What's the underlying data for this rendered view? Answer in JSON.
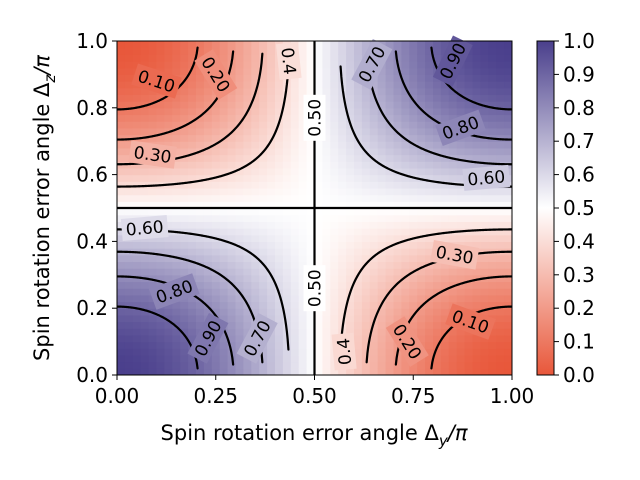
{
  "chart_data": {
    "type": "heatmap",
    "subtype": "filled-contour",
    "function": "0.5 + 0.5*cos(pi*x)*cos(pi*y)",
    "xlabel": "Spin rotation error angle Δy/π",
    "ylabel": "Spin rotation error angle Δz/π",
    "xlabel_parts": {
      "prefix": "Spin rotation error angle Δ",
      "sub": "y",
      "suffix": "/π"
    },
    "ylabel_parts": {
      "prefix": "Spin rotation error angle Δ",
      "sub": "z",
      "suffix": "/π"
    },
    "xlim": [
      0.0,
      1.0
    ],
    "ylim": [
      0.0,
      1.0
    ],
    "x_ticks": [
      0.0,
      0.25,
      0.5,
      0.75,
      1.0
    ],
    "x_tick_labels": [
      "0.00",
      "0.25",
      "0.50",
      "0.75",
      "1.00"
    ],
    "y_ticks": [
      0.0,
      0.2,
      0.4,
      0.6,
      0.8,
      1.0
    ],
    "y_tick_labels": [
      "0.0",
      "0.2",
      "0.4",
      "0.6",
      "0.8",
      "1.0"
    ],
    "colorbar": {
      "range": [
        0.0,
        1.0
      ],
      "ticks": [
        0.0,
        0.1,
        0.2,
        0.3,
        0.4,
        0.5,
        0.6,
        0.7,
        0.8,
        0.9,
        1.0
      ],
      "tick_labels": [
        "0.0",
        "0.1",
        "0.2",
        "0.3",
        "0.4",
        "0.5",
        "0.6",
        "0.7",
        "0.8",
        "0.9",
        "1.0"
      ],
      "color_low": "#e8573a",
      "color_mid": "#ffffff",
      "color_high": "#4a3f8c"
    },
    "contour_levels": [
      0.1,
      0.2,
      0.3,
      0.4,
      0.5,
      0.6,
      0.7,
      0.8,
      0.9
    ],
    "contour_labels": [
      {
        "text": "0.10",
        "x": 0.1,
        "y": 0.88,
        "angle": -18
      },
      {
        "text": "0.20",
        "x": 0.25,
        "y": 0.9,
        "angle": -58
      },
      {
        "text": "0.30",
        "x": 0.09,
        "y": 0.66,
        "angle": -8
      },
      {
        "text": "0.4",
        "x": 0.435,
        "y": 0.94,
        "angle": -84
      },
      {
        "text": "0.50",
        "x": 0.5,
        "y": 0.77,
        "angle": 90
      },
      {
        "text": "0.70",
        "x": 0.645,
        "y": 0.93,
        "angle": 62
      },
      {
        "text": "0.90",
        "x": 0.85,
        "y": 0.94,
        "angle": 64
      },
      {
        "text": "0.80",
        "x": 0.87,
        "y": 0.74,
        "angle": 20
      },
      {
        "text": "0.60",
        "x": 0.935,
        "y": 0.59,
        "angle": 5
      },
      {
        "text": "0.60",
        "x": 0.07,
        "y": 0.44,
        "angle": 5
      },
      {
        "text": "0.80",
        "x": 0.145,
        "y": 0.25,
        "angle": 20
      },
      {
        "text": "0.90",
        "x": 0.23,
        "y": 0.11,
        "angle": 62
      },
      {
        "text": "0.70",
        "x": 0.355,
        "y": 0.11,
        "angle": 62
      },
      {
        "text": "0.50",
        "x": 0.5,
        "y": 0.26,
        "angle": 90
      },
      {
        "text": "0.30",
        "x": 0.855,
        "y": 0.36,
        "angle": -10
      },
      {
        "text": "0.4",
        "x": 0.575,
        "y": 0.07,
        "angle": 95
      },
      {
        "text": "0.20",
        "x": 0.735,
        "y": 0.1,
        "angle": -58
      },
      {
        "text": "0.10",
        "x": 0.895,
        "y": 0.16,
        "angle": -20
      }
    ]
  }
}
